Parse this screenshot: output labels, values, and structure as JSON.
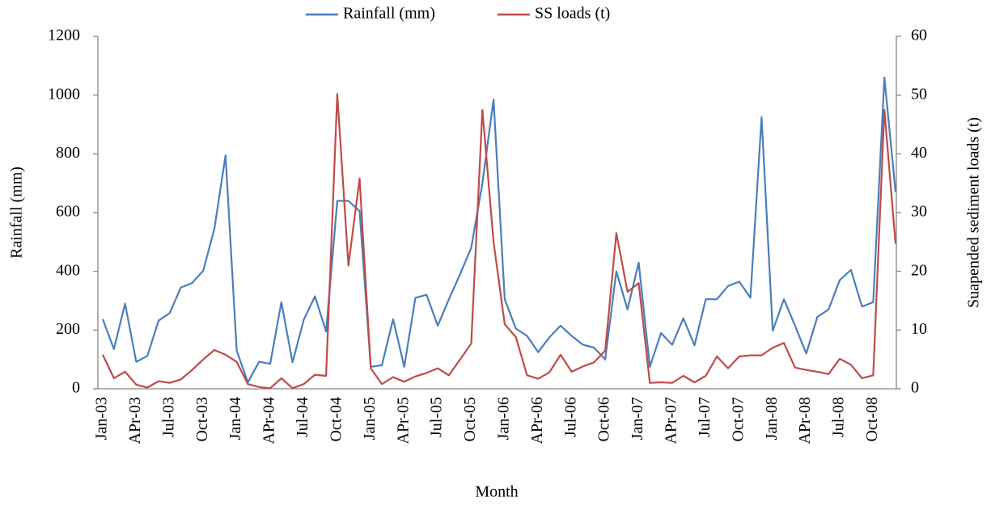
{
  "chart_data": {
    "type": "line",
    "x_label": "Month",
    "y_label": "Rainfall (mm)",
    "y2_label": "Suapended sediment loads (t)",
    "legend": "top",
    "grid": false,
    "categories": [
      "Jan-03",
      null,
      null,
      "APr-03",
      null,
      null,
      "Jul-03",
      null,
      null,
      "Oct-03",
      null,
      null,
      "Jan-04",
      null,
      null,
      "APr-04",
      null,
      null,
      "Jul-04",
      null,
      null,
      "Oct-04",
      null,
      null,
      "Jan-05",
      null,
      null,
      "APr-05",
      null,
      null,
      "Jul-05",
      null,
      null,
      "Oct-05",
      null,
      null,
      "Jan-06",
      null,
      null,
      "APr-06",
      null,
      null,
      "Jul-06",
      null,
      null,
      "Oct-06",
      null,
      null,
      "Jan-07",
      null,
      null,
      "APr-07",
      null,
      null,
      "Jul-07",
      null,
      null,
      "Oct-07",
      null,
      null,
      "Jan-08",
      null,
      null,
      "APr-08",
      null,
      null,
      "Jul-08",
      null,
      null,
      "Oct-08",
      null,
      null
    ],
    "ylim": [
      0,
      1200
    ],
    "yticks": [
      0,
      200,
      400,
      600,
      800,
      1000,
      1200
    ],
    "y2lim": [
      0,
      60
    ],
    "y2ticks": [
      0,
      10,
      20,
      30,
      40,
      50,
      60
    ],
    "series": [
      {
        "name": "Rainfall (mm)",
        "color": "#4a7ebb",
        "axis": "y",
        "values": [
          237,
          135,
          290,
          92,
          112,
          232,
          258,
          345,
          360,
          402,
          545,
          795,
          130,
          22,
          92,
          85,
          295,
          90,
          235,
          315,
          195,
          640,
          640,
          605,
          75,
          80,
          237,
          75,
          310,
          320,
          215,
          305,
          390,
          480,
          700,
          985,
          305,
          205,
          180,
          125,
          175,
          215,
          180,
          150,
          140,
          100,
          400,
          270,
          430,
          75,
          190,
          150,
          240,
          148,
          305,
          305,
          350,
          365,
          310,
          925,
          198,
          305,
          215,
          120,
          245,
          270,
          370,
          405,
          280,
          295,
          1060,
          670
        ]
      },
      {
        "name": "SS loads (t)",
        "color": "#be4b48",
        "axis": "y2",
        "values": [
          5.8,
          1.8,
          2.9,
          0.7,
          0.2,
          1.3,
          1.0,
          1.6,
          3.2,
          5.0,
          6.6,
          5.8,
          4.6,
          0.8,
          0.3,
          0.1,
          1.8,
          0.1,
          0.8,
          2.4,
          2.2,
          50.2,
          21,
          35.8,
          3.5,
          0.8,
          2.0,
          1.2,
          2.1,
          2.7,
          3.5,
          2.3,
          5.0,
          7.7,
          47.5,
          25,
          11,
          8.8,
          2.3,
          1.7,
          2.8,
          5.8,
          2.9,
          3.8,
          4.5,
          6.5,
          26.5,
          16.5,
          18,
          1.0,
          1.1,
          1.0,
          2.2,
          1.1,
          2.2,
          5.5,
          3.5,
          5.5,
          5.7,
          5.7,
          7.0,
          7.8,
          3.6,
          3.2,
          2.9,
          2.5,
          5.1,
          4.1,
          1.8,
          2.3,
          47.5,
          24.7
        ]
      }
    ]
  }
}
